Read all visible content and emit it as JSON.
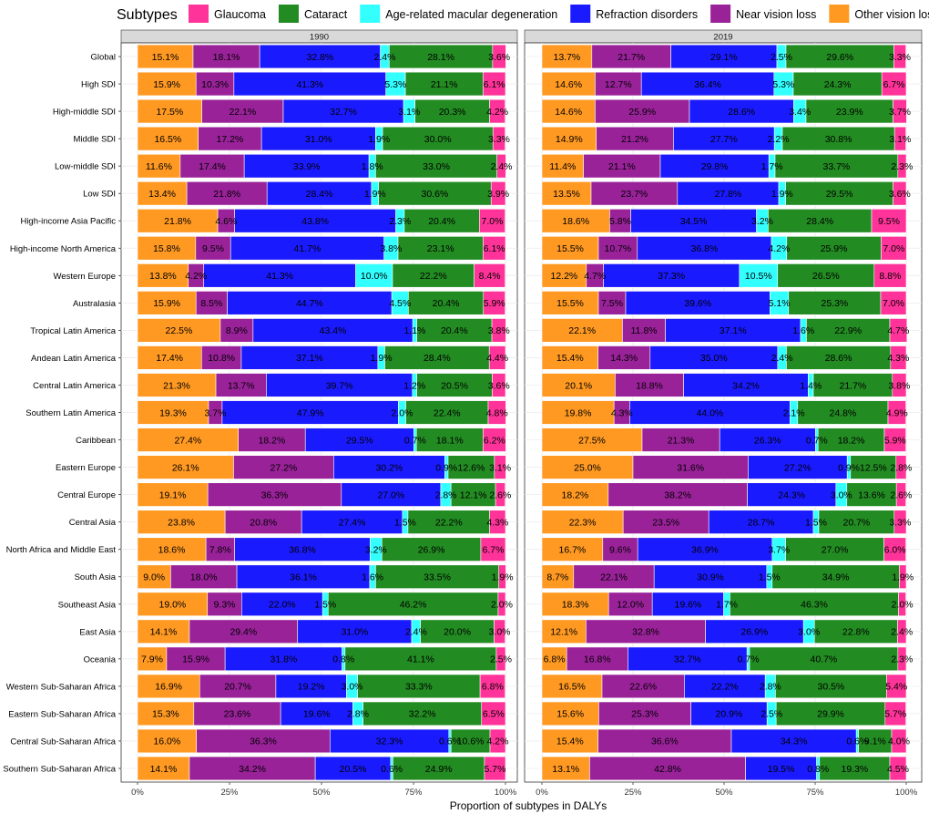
{
  "chart_data": {
    "type": "bar",
    "orientation": "horizontal-stacked-100",
    "legend_title": "Subtypes",
    "legend_position": "top",
    "xlabel": "Proportion of subtypes in DALYs",
    "x_ticks": [
      "0%",
      "25%",
      "50%",
      "75%",
      "100%"
    ],
    "xlim": [
      0,
      100
    ],
    "legend_order": [
      "Glaucoma",
      "Cataract",
      "Age-related macular degeneration",
      "Refraction disorders",
      "Near vision loss",
      "Other vision loss"
    ],
    "stack_order": [
      "Other vision loss",
      "Near vision loss",
      "Refraction disorders",
      "Age-related macular degeneration",
      "Cataract",
      "Glaucoma"
    ],
    "colors": {
      "Glaucoma": "#ff3399",
      "Cataract": "#228b22",
      "Age-related macular degeneration": "#33ffff",
      "Refraction disorders": "#1a1aff",
      "Near vision loss": "#992299",
      "Other vision loss": "#ff9922"
    },
    "categories": [
      "Global",
      "High SDI",
      "High-middle SDI",
      "Middle SDI",
      "Low-middle SDI",
      "Low SDI",
      "High-income Asia Pacific",
      "High-income North America",
      "Western Europe",
      "Australasia",
      "Tropical Latin America",
      "Andean Latin America",
      "Central Latin America",
      "Southern Latin America",
      "Caribbean",
      "Eastern Europe",
      "Central Europe",
      "Central Asia",
      "North Africa and Middle East",
      "South Asia",
      "Southeast Asia",
      "East Asia",
      "Oceania",
      "Western Sub-Saharan Africa",
      "Eastern Sub-Saharan Africa",
      "Central Sub-Saharan Africa",
      "Southern Sub-Saharan Africa"
    ],
    "panels": [
      {
        "title": "1990",
        "rows": [
          [
            15.1,
            18.1,
            32.8,
            2.4,
            28.1,
            3.6
          ],
          [
            15.9,
            10.3,
            41.3,
            5.3,
            21.1,
            6.1
          ],
          [
            17.5,
            22.1,
            32.7,
            3.1,
            20.3,
            4.2
          ],
          [
            16.5,
            17.2,
            31.0,
            1.9,
            30.0,
            3.3
          ],
          [
            11.6,
            17.4,
            33.9,
            1.8,
            33.0,
            2.4
          ],
          [
            13.4,
            21.8,
            28.4,
            1.9,
            30.6,
            3.9
          ],
          [
            21.8,
            4.6,
            43.8,
            2.3,
            20.4,
            7.0
          ],
          [
            15.8,
            9.5,
            41.7,
            3.8,
            23.1,
            6.1
          ],
          [
            13.8,
            4.2,
            41.3,
            10.0,
            22.2,
            8.4
          ],
          [
            15.9,
            8.5,
            44.7,
            4.5,
            20.4,
            5.9
          ],
          [
            22.5,
            8.9,
            43.4,
            1.1,
            20.4,
            3.8
          ],
          [
            17.4,
            10.8,
            37.1,
            1.9,
            28.4,
            4.4
          ],
          [
            21.3,
            13.7,
            39.7,
            1.2,
            20.5,
            3.6
          ],
          [
            19.3,
            3.7,
            47.9,
            2.0,
            22.4,
            4.8
          ],
          [
            27.4,
            18.2,
            29.5,
            0.7,
            18.1,
            6.2
          ],
          [
            26.1,
            27.2,
            30.2,
            0.9,
            12.6,
            3.1
          ],
          [
            19.1,
            36.3,
            27.0,
            2.8,
            12.1,
            2.6
          ],
          [
            23.8,
            20.8,
            27.4,
            1.5,
            22.2,
            4.3
          ],
          [
            18.6,
            7.8,
            36.8,
            3.2,
            26.9,
            6.7
          ],
          [
            9.0,
            18.0,
            36.1,
            1.6,
            33.5,
            1.9
          ],
          [
            19.0,
            9.3,
            22.0,
            1.5,
            46.2,
            2.0
          ],
          [
            14.1,
            29.4,
            31.0,
            2.4,
            20.0,
            3.0
          ],
          [
            7.9,
            15.9,
            31.8,
            0.8,
            41.1,
            2.5
          ],
          [
            16.9,
            20.7,
            19.2,
            3.0,
            33.3,
            6.8
          ],
          [
            15.3,
            23.6,
            19.6,
            2.8,
            32.2,
            6.5
          ],
          [
            16.0,
            36.3,
            32.3,
            0.6,
            10.6,
            4.2
          ],
          [
            14.1,
            34.2,
            20.5,
            0.6,
            24.9,
            5.7
          ]
        ]
      },
      {
        "title": "2019",
        "rows": [
          [
            13.7,
            21.7,
            29.1,
            2.5,
            29.6,
            3.3
          ],
          [
            14.6,
            12.7,
            36.4,
            5.3,
            24.3,
            6.7
          ],
          [
            14.6,
            25.9,
            28.6,
            3.4,
            23.9,
            3.7
          ],
          [
            14.9,
            21.2,
            27.7,
            2.2,
            30.8,
            3.1
          ],
          [
            11.4,
            21.1,
            29.8,
            1.7,
            33.7,
            2.3
          ],
          [
            13.5,
            23.7,
            27.8,
            1.9,
            29.5,
            3.6
          ],
          [
            18.6,
            5.8,
            34.5,
            3.2,
            28.4,
            9.5
          ],
          [
            15.5,
            10.7,
            36.8,
            4.2,
            25.9,
            7.0
          ],
          [
            12.2,
            4.7,
            37.3,
            10.5,
            26.5,
            8.8
          ],
          [
            15.5,
            7.5,
            39.6,
            5.1,
            25.3,
            7.0
          ],
          [
            22.1,
            11.8,
            37.1,
            1.6,
            22.9,
            4.7
          ],
          [
            15.4,
            14.3,
            35.0,
            2.4,
            28.6,
            4.3
          ],
          [
            20.1,
            18.8,
            34.2,
            1.4,
            21.7,
            3.8
          ],
          [
            19.8,
            4.3,
            44.0,
            2.1,
            24.8,
            4.9
          ],
          [
            27.5,
            21.3,
            26.3,
            0.7,
            18.2,
            5.9
          ],
          [
            25.0,
            31.6,
            27.2,
            0.9,
            12.5,
            2.8
          ],
          [
            18.2,
            38.2,
            24.3,
            3.0,
            13.6,
            2.6
          ],
          [
            22.3,
            23.5,
            28.7,
            1.5,
            20.7,
            3.3
          ],
          [
            16.7,
            9.6,
            36.9,
            3.7,
            27.0,
            6.0
          ],
          [
            8.7,
            22.1,
            30.9,
            1.5,
            34.9,
            1.9
          ],
          [
            18.3,
            12.0,
            19.6,
            1.7,
            46.3,
            2.0
          ],
          [
            12.1,
            32.8,
            26.9,
            3.0,
            22.8,
            2.4
          ],
          [
            6.8,
            16.8,
            32.7,
            0.7,
            40.7,
            2.3
          ],
          [
            16.5,
            22.6,
            22.2,
            2.8,
            30.5,
            5.4
          ],
          [
            15.6,
            25.3,
            20.9,
            2.5,
            29.9,
            5.7
          ],
          [
            15.4,
            36.6,
            34.3,
            0.6,
            9.1,
            4.0
          ],
          [
            13.1,
            42.8,
            19.5,
            0.8,
            19.3,
            4.5
          ]
        ]
      }
    ]
  }
}
